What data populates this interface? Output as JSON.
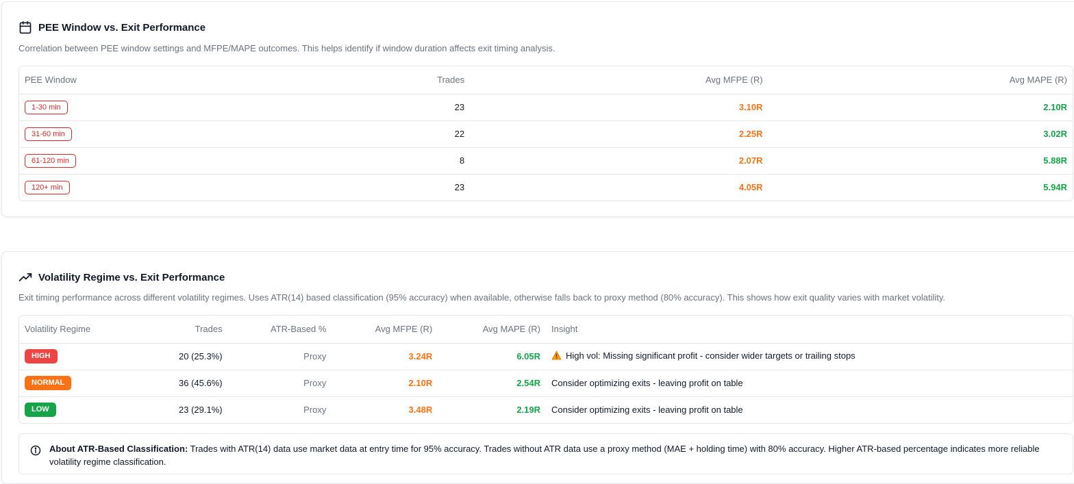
{
  "pee_card": {
    "title": "PEE Window vs. Exit Performance",
    "description": "Correlation between PEE window settings and MFPE/MAPE outcomes. This helps identify if window duration affects exit timing analysis.",
    "headers": {
      "window": "PEE Window",
      "trades": "Trades",
      "mfpe": "Avg MFPE (R)",
      "mape": "Avg MAPE (R)"
    },
    "rows": [
      {
        "window": "1-30 min",
        "trades": "23",
        "mfpe": "3.10R",
        "mape": "2.10R"
      },
      {
        "window": "31-60 min",
        "trades": "22",
        "mfpe": "2.25R",
        "mape": "3.02R"
      },
      {
        "window": "61-120 min",
        "trades": "8",
        "mfpe": "2.07R",
        "mape": "5.88R"
      },
      {
        "window": "120+ min",
        "trades": "23",
        "mfpe": "4.05R",
        "mape": "5.94R"
      }
    ]
  },
  "vol_card": {
    "title": "Volatility Regime vs. Exit Performance",
    "description": "Exit timing performance across different volatility regimes. Uses ATR(14) based classification (95% accuracy) when available, otherwise falls back to proxy method (80% accuracy). This shows how exit quality varies with market volatility.",
    "headers": {
      "regime": "Volatility Regime",
      "trades": "Trades",
      "atr": "ATR-Based %",
      "mfpe": "Avg MFPE (R)",
      "mape": "Avg MAPE (R)",
      "insight": "Insight"
    },
    "rows": [
      {
        "regime": "HIGH",
        "color": "#ef4444",
        "trades": "20 (25.3%)",
        "atr": "Proxy",
        "mfpe": "3.24R",
        "mape": "6.05R",
        "insight": "High vol: Missing significant profit - consider wider targets or trailing stops",
        "warning": true
      },
      {
        "regime": "NORMAL",
        "color": "#f97316",
        "trades": "36 (45.6%)",
        "atr": "Proxy",
        "mfpe": "2.10R",
        "mape": "2.54R",
        "insight": "Consider optimizing exits - leaving profit on table",
        "warning": false
      },
      {
        "regime": "LOW",
        "color": "#16a34a",
        "trades": "23 (29.1%)",
        "atr": "Proxy",
        "mfpe": "3.48R",
        "mape": "2.19R",
        "insight": "Consider optimizing exits - leaving profit on table",
        "warning": false
      }
    ],
    "info": {
      "title": "About ATR-Based Classification:",
      "text": " Trades with ATR(14) data use market data at entry time for 95% accuracy. Trades without ATR data use a proxy method (MAE + holding time) with 80% accuracy. Higher ATR-based percentage indicates more reliable volatility regime classification."
    }
  },
  "colors": {
    "mfpe": "#f97316",
    "mape": "#16a34a",
    "window_badge": "#dc2626"
  },
  "icons": {
    "pee_title": "calendar-icon",
    "vol_title": "trending-up-icon",
    "warning": "warning-icon",
    "info": "info-icon"
  }
}
